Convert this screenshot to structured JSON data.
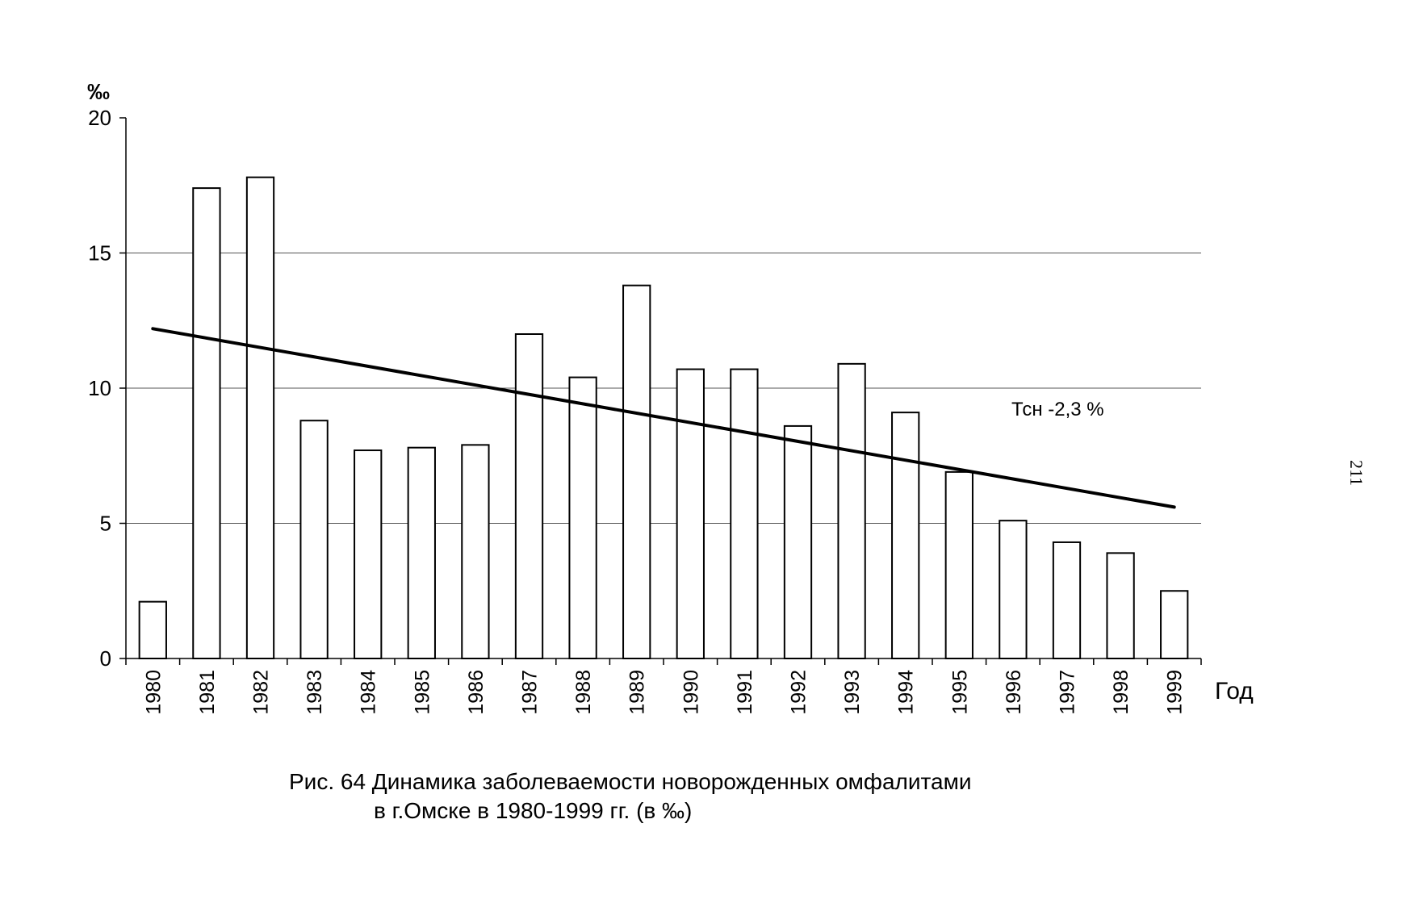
{
  "chart_data": {
    "type": "bar",
    "categories": [
      "1980",
      "1981",
      "1982",
      "1983",
      "1984",
      "1985",
      "1986",
      "1987",
      "1988",
      "1989",
      "1990",
      "1991",
      "1992",
      "1993",
      "1994",
      "1995",
      "1996",
      "1997",
      "1998",
      "1999"
    ],
    "values": [
      2.1,
      17.4,
      17.8,
      8.8,
      7.7,
      7.8,
      7.9,
      12.0,
      10.4,
      13.8,
      10.7,
      10.7,
      8.6,
      10.9,
      9.1,
      6.9,
      5.1,
      4.3,
      3.9,
      2.5
    ],
    "trendline": {
      "start": 12.2,
      "end": 5.6,
      "label": "Тсн -2,3 %"
    },
    "ylabel": "‰",
    "xlabel": "Год",
    "ylim": [
      0,
      20
    ],
    "yticks": [
      "0",
      "5",
      "10",
      "15",
      "20"
    ],
    "grid": true,
    "bar_fill": "#ffffff",
    "line_color": "#000000"
  },
  "caption": {
    "line1": "Рис. 64 Динамика заболеваемости новорожденных омфалитами",
    "line2": "в г.Омске в 1980-1999 гг. (в ‰)"
  },
  "page_number": "211"
}
